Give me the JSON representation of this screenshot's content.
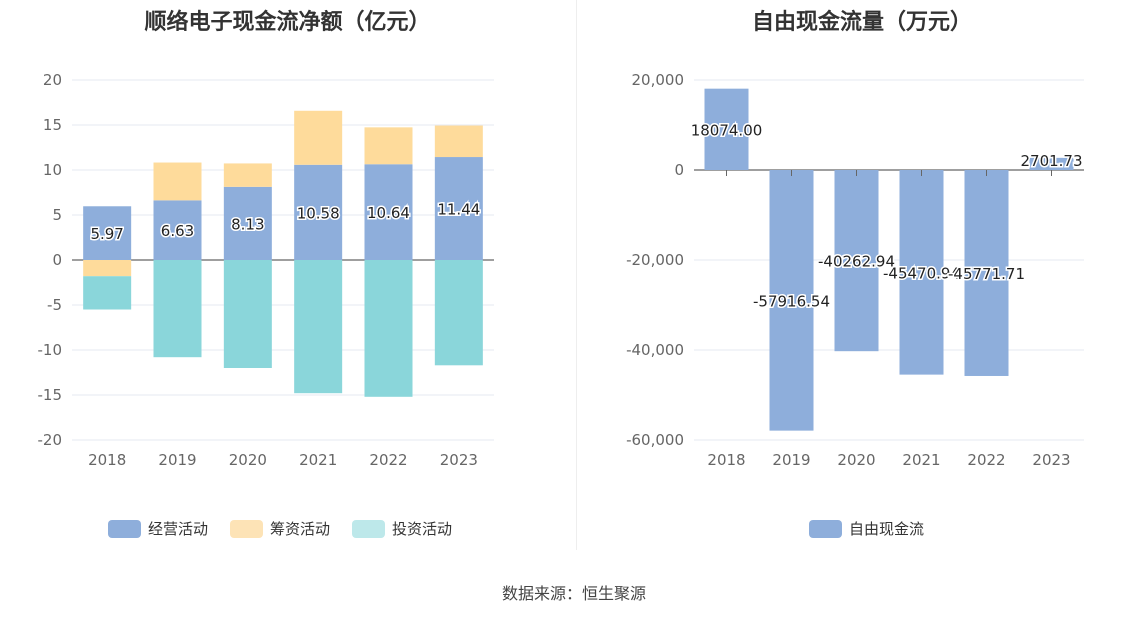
{
  "source_text": "数据来源：恒生聚源",
  "chart_data": [
    {
      "type": "bar",
      "title": "顺络电子现金流净额（亿元）",
      "categories": [
        "2018",
        "2019",
        "2020",
        "2021",
        "2022",
        "2023"
      ],
      "ylim": [
        -20,
        20
      ],
      "yticks": [
        20,
        15,
        10,
        5,
        0,
        -5,
        -10,
        -15,
        -20
      ],
      "stacked": true,
      "series": [
        {
          "name": "经营活动",
          "color": "#8eaedb",
          "values": [
            5.97,
            6.63,
            8.13,
            10.58,
            10.64,
            11.44
          ],
          "labels": [
            "5.97",
            "6.63",
            "8.13",
            "10.58",
            "10.64",
            "11.44"
          ]
        },
        {
          "name": "筹资活动",
          "color": "#fedb9b",
          "values": [
            -1.8,
            4.2,
            2.6,
            6.0,
            4.1,
            3.5
          ]
        },
        {
          "name": "投资活动",
          "color": "#8ad6da",
          "values": [
            -3.7,
            -10.8,
            -12.0,
            -14.8,
            -15.2,
            -11.7
          ]
        }
      ],
      "legend": [
        {
          "name": "经营活动",
          "color": "#8eaedb"
        },
        {
          "name": "筹资活动",
          "color": "#fde3b6"
        },
        {
          "name": "投资活动",
          "color": "#bde8ea"
        }
      ],
      "grid": true,
      "legend_position": "bottom"
    },
    {
      "type": "bar",
      "title": "自由现金流量（万元）",
      "categories": [
        "2018",
        "2019",
        "2020",
        "2021",
        "2022",
        "2023"
      ],
      "ylim": [
        -60000,
        20000
      ],
      "yticks": [
        20000,
        0,
        -20000,
        -40000,
        -60000
      ],
      "ytick_labels": [
        "20,000",
        "0",
        "-20,000",
        "-40,000",
        "-60,000"
      ],
      "series": [
        {
          "name": "自由现金流",
          "color": "#8eaedb",
          "values": [
            18074.0,
            -57916.54,
            -40262.94,
            -45470.94,
            -45771.71,
            2701.73
          ],
          "labels": [
            "18074.00",
            "-57916.54",
            "-40262.94",
            "-45470.94",
            "-45771.71",
            "2701.73"
          ]
        }
      ],
      "legend": [
        {
          "name": "自由现金流",
          "color": "#8eaedb"
        }
      ],
      "grid": true,
      "legend_position": "bottom"
    }
  ]
}
